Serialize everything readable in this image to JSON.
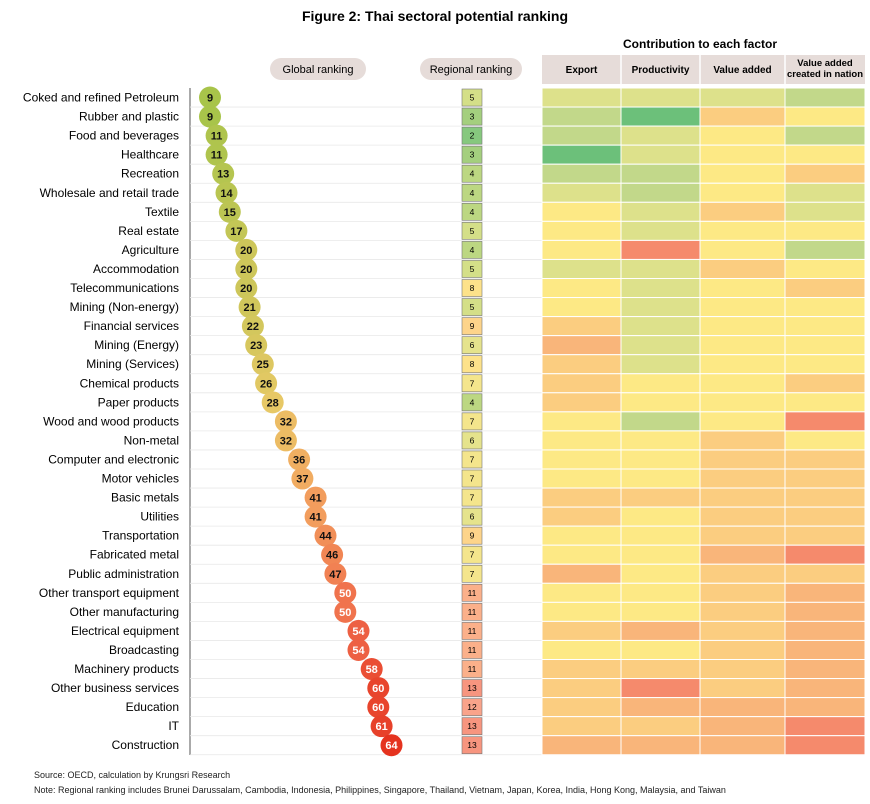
{
  "title": "Figure 2: Thai sectoral potential ranking",
  "headers": {
    "global": "Global ranking",
    "regional": "Regional ranking",
    "contribution": "Contribution to each factor",
    "factors": [
      "Export",
      "Productivity",
      "Value added",
      "Value added created in nation"
    ]
  },
  "source": "Source: OECD, calculation by Krungsri Research",
  "note": "Note: Regional ranking includes Brunei Darussalam, Cambodia, Indonesia, Philippines, Singapore, Thailand, Vietnam, Japan, Korea, India, Hong Kong, Malaysia, and Taiwan",
  "colors": {
    "dark_green": "#6cc07a",
    "green": "#c2d88a",
    "light_green": "#dde18b",
    "yellow": "#fde985",
    "light_orange": "#fbcd80",
    "orange": "#f9b57a",
    "red": "#f58a6c",
    "header_bg": "#e6dcd9"
  },
  "chart_data": {
    "type": "table",
    "sectors": [
      {
        "name": "Coked and refined Petroleum",
        "global": 9,
        "regional": 5,
        "factors": [
          3,
          3,
          3,
          2
        ]
      },
      {
        "name": "Rubber and plastic",
        "global": 9,
        "regional": 3,
        "factors": [
          2,
          1,
          5,
          4
        ]
      },
      {
        "name": "Food and beverages",
        "global": 11,
        "regional": 2,
        "factors": [
          2,
          3,
          4,
          2
        ]
      },
      {
        "name": "Healthcare",
        "global": 11,
        "regional": 3,
        "factors": [
          1,
          3,
          4,
          4
        ]
      },
      {
        "name": "Recreation",
        "global": 13,
        "regional": 4,
        "factors": [
          2,
          2,
          4,
          5
        ]
      },
      {
        "name": "Wholesale and retail trade",
        "global": 14,
        "regional": 4,
        "factors": [
          3,
          2,
          4,
          3
        ]
      },
      {
        "name": "Textile",
        "global": 15,
        "regional": 4,
        "factors": [
          4,
          3,
          5,
          3
        ]
      },
      {
        "name": "Real estate",
        "global": 17,
        "regional": 5,
        "factors": [
          4,
          3,
          4,
          4
        ]
      },
      {
        "name": "Agriculture",
        "global": 20,
        "regional": 4,
        "factors": [
          4,
          7,
          4,
          2
        ]
      },
      {
        "name": "Accommodation",
        "global": 20,
        "regional": 5,
        "factors": [
          3,
          3,
          5,
          4
        ]
      },
      {
        "name": "Telecommunications",
        "global": 20,
        "regional": 8,
        "factors": [
          4,
          3,
          4,
          5
        ]
      },
      {
        "name": "Mining (Non-energy)",
        "global": 21,
        "regional": 5,
        "factors": [
          4,
          3,
          4,
          4
        ]
      },
      {
        "name": "Financial services",
        "global": 22,
        "regional": 9,
        "factors": [
          5,
          3,
          4,
          4
        ]
      },
      {
        "name": "Mining (Energy)",
        "global": 23,
        "regional": 6,
        "factors": [
          6,
          3,
          4,
          4
        ]
      },
      {
        "name": "Mining (Services)",
        "global": 25,
        "regional": 8,
        "factors": [
          5,
          3,
          4,
          4
        ]
      },
      {
        "name": "Chemical products",
        "global": 26,
        "regional": 7,
        "factors": [
          5,
          4,
          4,
          5
        ]
      },
      {
        "name": "Paper products",
        "global": 28,
        "regional": 4,
        "factors": [
          5,
          4,
          4,
          4
        ]
      },
      {
        "name": "Wood and wood products",
        "global": 32,
        "regional": 7,
        "factors": [
          4,
          2,
          4,
          7
        ]
      },
      {
        "name": "Non-metal",
        "global": 32,
        "regional": 6,
        "factors": [
          4,
          4,
          5,
          4
        ]
      },
      {
        "name": "Computer and electronic",
        "global": 36,
        "regional": 7,
        "factors": [
          4,
          4,
          5,
          5
        ]
      },
      {
        "name": "Motor vehicles",
        "global": 37,
        "regional": 7,
        "factors": [
          4,
          4,
          5,
          5
        ]
      },
      {
        "name": "Basic metals",
        "global": 41,
        "regional": 7,
        "factors": [
          5,
          5,
          5,
          5
        ]
      },
      {
        "name": "Utilities",
        "global": 41,
        "regional": 6,
        "factors": [
          5,
          4,
          5,
          5
        ]
      },
      {
        "name": "Transportation",
        "global": 44,
        "regional": 9,
        "factors": [
          4,
          4,
          5,
          5
        ]
      },
      {
        "name": "Fabricated metal",
        "global": 46,
        "regional": 7,
        "factors": [
          4,
          4,
          6,
          7
        ]
      },
      {
        "name": "Public administration",
        "global": 47,
        "regional": 7,
        "factors": [
          6,
          4,
          5,
          5
        ]
      },
      {
        "name": "Other transport equipment",
        "global": 50,
        "regional": 11,
        "factors": [
          4,
          4,
          5,
          6
        ]
      },
      {
        "name": "Other manufacturing",
        "global": 50,
        "regional": 11,
        "factors": [
          4,
          4,
          5,
          6
        ]
      },
      {
        "name": "Electrical equipment",
        "global": 54,
        "regional": 11,
        "factors": [
          5,
          6,
          5,
          6
        ]
      },
      {
        "name": "Broadcasting",
        "global": 54,
        "regional": 11,
        "factors": [
          4,
          4,
          5,
          6
        ]
      },
      {
        "name": "Machinery products",
        "global": 58,
        "regional": 11,
        "factors": [
          5,
          5,
          5,
          6
        ]
      },
      {
        "name": "Other business services",
        "global": 60,
        "regional": 13,
        "factors": [
          5,
          7,
          5,
          6
        ]
      },
      {
        "name": "Education",
        "global": 60,
        "regional": 12,
        "factors": [
          5,
          6,
          6,
          6
        ]
      },
      {
        "name": "IT",
        "global": 61,
        "regional": 13,
        "factors": [
          5,
          5,
          6,
          7
        ]
      },
      {
        "name": "Construction",
        "global": 64,
        "regional": 13,
        "factors": [
          6,
          6,
          6,
          7
        ]
      }
    ]
  }
}
